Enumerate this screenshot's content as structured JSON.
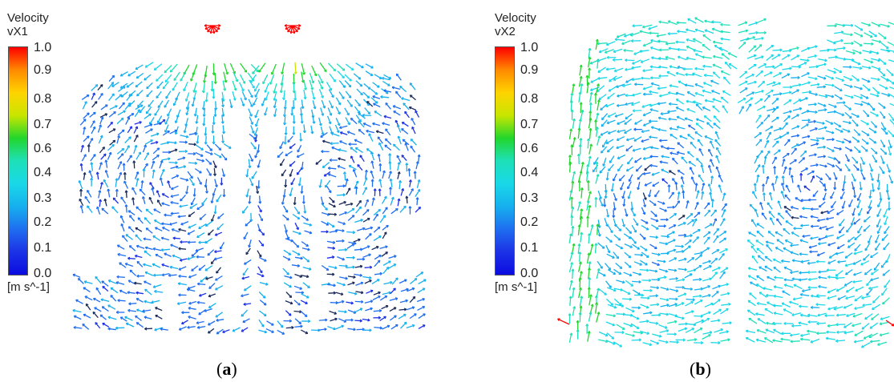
{
  "panels": [
    {
      "id": "a",
      "legend_title": "Velocity",
      "legend_var": "vX1",
      "ticks": [
        "1.0",
        "0.9",
        "0.8",
        "0.7",
        "0.6",
        "0.4",
        "0.3",
        "0.2",
        "0.1",
        "0.0"
      ],
      "units": "[m s^-1]",
      "label_open": "(",
      "label_letter": "a",
      "label_close": ")"
    },
    {
      "id": "b",
      "legend_title": "Velocity",
      "legend_var": "vX2",
      "ticks": [
        "1.0",
        "0.9",
        "0.8",
        "0.7",
        "0.6",
        "0.4",
        "0.3",
        "0.2",
        "0.1",
        "0.0"
      ],
      "units": "[m s^-1]",
      "label_open": "(",
      "label_letter": "b",
      "label_close": ")"
    }
  ],
  "colormap": [
    "#0b0be0",
    "#1c32e6",
    "#1f6ef0",
    "#16b0ee",
    "#19d8e8",
    "#1ee0b8",
    "#22d62c",
    "#c8e600",
    "#ffd400",
    "#ff8a00",
    "#ff0000"
  ],
  "vector_color_dark": "#1a2a5a"
}
